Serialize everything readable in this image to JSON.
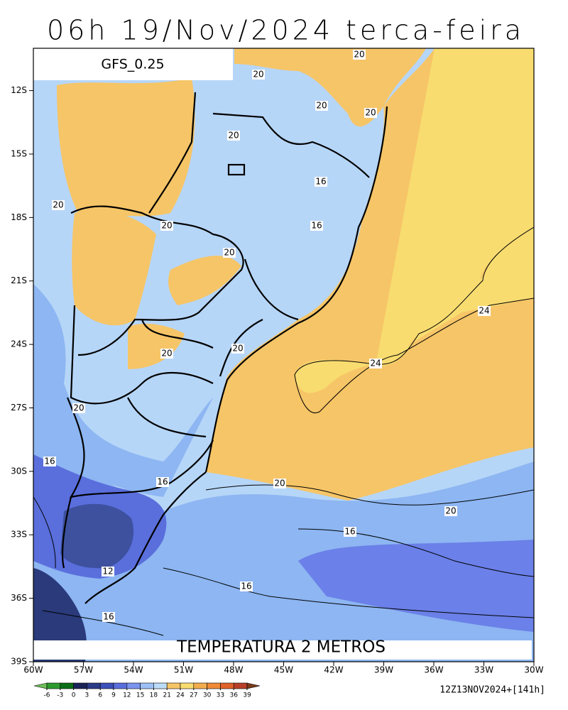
{
  "title": "06h 19/Nov/2024 terca-feira",
  "model": "GFS_0.25",
  "caption": "TEMPERATURA 2 METROS",
  "run_info": "12Z13NOV2024+[141h]",
  "lonlim": [
    -60,
    -30
  ],
  "latlim": [
    -39,
    -10
  ],
  "lat_ticks": [
    {
      "value": -12,
      "label": "12S"
    },
    {
      "value": -15,
      "label": "15S"
    },
    {
      "value": -18,
      "label": "18S"
    },
    {
      "value": -21,
      "label": "21S"
    },
    {
      "value": -24,
      "label": "24S"
    },
    {
      "value": -27,
      "label": "27S"
    },
    {
      "value": -30,
      "label": "30S"
    },
    {
      "value": -33,
      "label": "33S"
    },
    {
      "value": -36,
      "label": "36S"
    },
    {
      "value": -39,
      "label": "39S"
    }
  ],
  "lon_ticks": [
    {
      "value": -60,
      "label": "60W"
    },
    {
      "value": -57,
      "label": "57W"
    },
    {
      "value": -54,
      "label": "54W"
    },
    {
      "value": -51,
      "label": "51W"
    },
    {
      "value": -48,
      "label": "48W"
    },
    {
      "value": -45,
      "label": "45W"
    },
    {
      "value": -42,
      "label": "42W"
    },
    {
      "value": -39,
      "label": "39W"
    },
    {
      "value": -36,
      "label": "36W"
    },
    {
      "value": -33,
      "label": "33W"
    },
    {
      "value": -30,
      "label": "30W"
    }
  ],
  "contour_labels": [
    20,
    20,
    20,
    20,
    20,
    16,
    20,
    16,
    20,
    20,
    24,
    20,
    20,
    24,
    20,
    16,
    16,
    20,
    20,
    16,
    12,
    16,
    16
  ],
  "colorbar_ticks": [
    -6,
    -3,
    0,
    3,
    6,
    9,
    12,
    15,
    18,
    21,
    24,
    27,
    30,
    33,
    36,
    39
  ]
}
